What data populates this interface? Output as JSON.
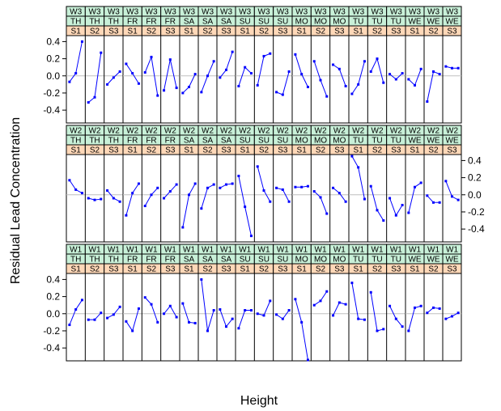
{
  "chart_data": {
    "type": "line",
    "xlabel": "Height",
    "ylabel": "Residual Lead Concentration",
    "ylim": [
      -0.55,
      0.47
    ],
    "yticks": [
      -0.4,
      -0.2,
      0.0,
      0.2,
      0.4
    ],
    "ytick_labels": [
      "-0.4",
      "-0.2",
      "0.0",
      "0.2",
      "0.4"
    ],
    "reference_line": 0,
    "colors": {
      "line": "#0000ff",
      "reference": "#bfbfbf",
      "strip_week": "#c8f0d8",
      "strip_day": "#c8f0d8",
      "strip_site": "#ffd8b8",
      "frame": "#000000"
    },
    "sites": [
      "S1",
      "S2",
      "S3"
    ],
    "rows": [
      {
        "week": "W3",
        "panels": [
          {
            "day": "TH",
            "values": [
              [
                -0.07,
                0.03,
                0.4
              ],
              [
                -0.31,
                -0.25,
                0.27
              ],
              [
                -0.1,
                -0.02,
                0.05
              ]
            ]
          },
          {
            "day": "FR",
            "values": [
              [
                0.14,
                0.03,
                -0.09
              ],
              [
                0.04,
                0.22,
                -0.23
              ],
              [
                -0.17,
                0.19,
                -0.14
              ]
            ]
          },
          {
            "day": "SA",
            "values": [
              [
                -0.2,
                -0.13,
                0.02
              ],
              [
                -0.19,
                0.0,
                0.17
              ],
              [
                -0.02,
                0.07,
                0.28
              ]
            ]
          },
          {
            "day": "SU",
            "values": [
              [
                -0.12,
                0.1,
                0.03
              ],
              [
                -0.11,
                0.23,
                0.26
              ],
              [
                -0.19,
                -0.22,
                0.05
              ]
            ]
          },
          {
            "day": "MO",
            "values": [
              [
                0.25,
                0.02,
                -0.13
              ],
              [
                0.17,
                -0.05,
                -0.24
              ],
              [
                0.13,
                0.08,
                -0.12
              ]
            ]
          },
          {
            "day": "TU",
            "values": [
              [
                -0.21,
                -0.1,
                0.17
              ],
              [
                0.05,
                0.2,
                -0.08
              ],
              [
                0.02,
                -0.04,
                0.03
              ]
            ]
          },
          {
            "day": "WE",
            "values": [
              [
                -0.04,
                -0.11,
                0.08
              ],
              [
                -0.3,
                0.05,
                0.02
              ],
              [
                0.11,
                0.09,
                0.09
              ]
            ]
          }
        ]
      },
      {
        "week": "W2",
        "panels": [
          {
            "day": "TH",
            "values": [
              [
                0.17,
                0.06,
                0.02
              ],
              [
                -0.04,
                -0.06,
                -0.05
              ],
              [
                0.05,
                -0.04,
                -0.08
              ]
            ]
          },
          {
            "day": "FR",
            "values": [
              [
                -0.24,
                0.02,
                0.13
              ],
              [
                -0.13,
                0.0,
                0.08
              ],
              [
                -0.04,
                0.04,
                0.12
              ]
            ]
          },
          {
            "day": "SA",
            "values": [
              [
                -0.38,
                0.0,
                0.13
              ],
              [
                -0.16,
                0.08,
                0.12
              ],
              [
                0.08,
                0.12,
                0.13
              ]
            ]
          },
          {
            "day": "SU",
            "values": [
              [
                0.22,
                -0.14,
                -0.48
              ],
              [
                0.33,
                0.05,
                -0.08
              ],
              [
                0.08,
                0.06,
                -0.08
              ]
            ]
          },
          {
            "day": "MO",
            "values": [
              [
                0.09,
                0.09,
                0.1
              ],
              [
                0.04,
                -0.03,
                -0.22
              ],
              [
                0.08,
                0.02,
                -0.08
              ]
            ]
          },
          {
            "day": "TU",
            "values": [
              [
                0.45,
                0.32,
                -0.05
              ],
              [
                0.1,
                -0.18,
                -0.3
              ],
              [
                -0.04,
                -0.24,
                -0.12
              ]
            ]
          },
          {
            "day": "WE",
            "values": [
              [
                -0.21,
                0.09,
                0.14
              ],
              [
                -0.01,
                -0.09,
                -0.09
              ],
              [
                0.16,
                -0.02,
                -0.06
              ]
            ]
          }
        ]
      },
      {
        "week": "W1",
        "panels": [
          {
            "day": "TH",
            "values": [
              [
                -0.13,
                0.05,
                0.16
              ],
              [
                -0.07,
                -0.07,
                0.01
              ],
              [
                -0.05,
                -0.01,
                0.08
              ]
            ]
          },
          {
            "day": "FR",
            "values": [
              [
                -0.09,
                -0.2,
                0.06
              ],
              [
                0.19,
                0.11,
                -0.1
              ],
              [
                0.0,
                0.09,
                -0.04
              ]
            ]
          },
          {
            "day": "SA",
            "values": [
              [
                0.12,
                -0.1,
                -0.11
              ],
              [
                0.4,
                -0.2,
                0.04
              ],
              [
                0.05,
                -0.15,
                -0.06
              ]
            ]
          },
          {
            "day": "SU",
            "values": [
              [
                -0.17,
                0.04,
                0.04
              ],
              [
                0.0,
                -0.02,
                0.15
              ],
              [
                -0.01,
                -0.06,
                0.04
              ]
            ]
          },
          {
            "day": "MO",
            "values": [
              [
                0.17,
                -0.1,
                -0.54
              ],
              [
                0.1,
                0.15,
                0.26
              ],
              [
                -0.02,
                0.13,
                0.11
              ]
            ]
          },
          {
            "day": "TU",
            "values": [
              [
                0.36,
                -0.06,
                -0.07
              ],
              [
                0.25,
                -0.2,
                -0.18
              ],
              [
                0.09,
                -0.06,
                -0.15
              ]
            ]
          },
          {
            "day": "WE",
            "values": [
              [
                -0.2,
                0.07,
                0.09
              ],
              [
                0.01,
                0.07,
                0.06
              ],
              [
                -0.06,
                -0.03,
                0.01
              ]
            ]
          }
        ]
      }
    ]
  }
}
